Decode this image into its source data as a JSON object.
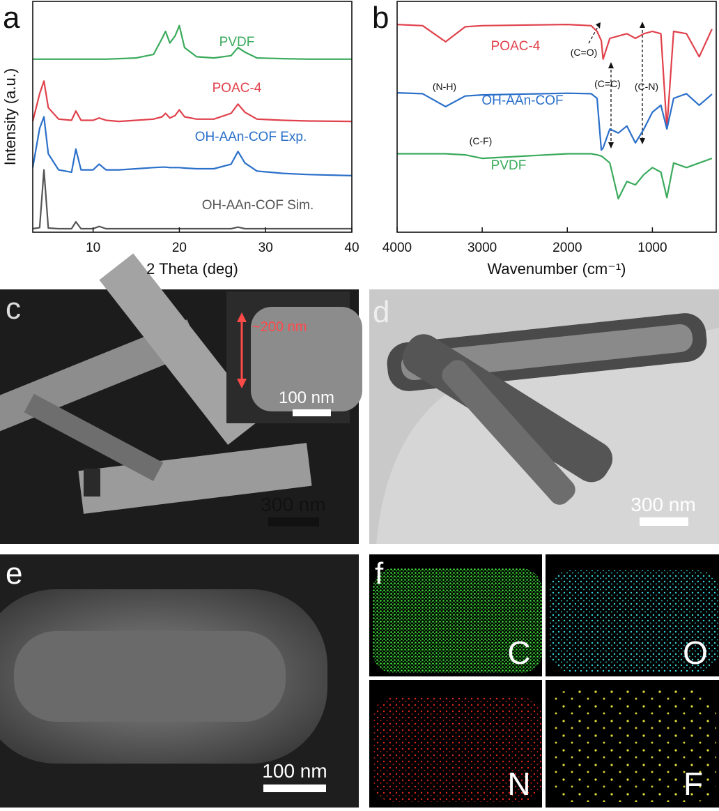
{
  "chart_data": [
    {
      "type": "line",
      "panel_label": "a",
      "x_label": "2 Theta (deg)",
      "y_label": "Intensity (a.u.)",
      "xlim": [
        3,
        40
      ],
      "xticks": [
        10,
        20,
        30,
        40
      ],
      "ylim": [
        0,
        100
      ],
      "x": [
        3,
        3.8,
        4.3,
        4.8,
        6,
        7.5,
        8.0,
        8.6,
        10,
        10.7,
        11.5,
        13,
        15,
        17,
        18.0,
        18.4,
        18.9,
        19.5,
        20.0,
        20.6,
        22,
        24,
        26,
        26.8,
        27.6,
        29,
        32,
        35,
        40
      ],
      "series": [
        {
          "name": "PVDF",
          "color": "#3aaa5c",
          "values": [
            75,
            75,
            75,
            75,
            75,
            75,
            75,
            75,
            75,
            75,
            75,
            75.2,
            75.5,
            77,
            84,
            87,
            82,
            85,
            89.5,
            80,
            76,
            75.5,
            76.5,
            80,
            78,
            75.5,
            75.2,
            75,
            75
          ]
        },
        {
          "name": "POAC-4",
          "color": "#e0414b",
          "values": [
            48,
            60,
            65.5,
            54,
            49,
            48.5,
            52.5,
            48.5,
            48.5,
            49.5,
            48.5,
            48,
            48.5,
            49,
            50,
            51.5,
            49.5,
            50.5,
            53,
            50,
            49,
            49,
            51.5,
            55.5,
            52,
            49,
            48.5,
            48.2,
            48
          ]
        },
        {
          "name": "OH-AAn-COF Exp.",
          "color": "#2a6fc9",
          "values": [
            28,
            45,
            50,
            34,
            27,
            26,
            36,
            27,
            27,
            29.5,
            27,
            27,
            27.5,
            28,
            28.2,
            28.2,
            28,
            28,
            28,
            27.8,
            27.5,
            27.5,
            29.5,
            35,
            30,
            26.5,
            25.5,
            25,
            24.5
          ]
        },
        {
          "name": "OH-AAn-COF Sim.",
          "color": "#555555",
          "values": [
            1.5,
            2,
            27,
            1.8,
            1.5,
            1.5,
            4.5,
            1.5,
            1.5,
            2.5,
            1.5,
            1.5,
            1.5,
            1.5,
            1.5,
            1.5,
            1.5,
            1.5,
            1.5,
            1.5,
            1.5,
            1.5,
            1.5,
            2.2,
            1.5,
            1.5,
            1.5,
            1.5,
            1.5
          ]
        }
      ]
    },
    {
      "type": "line",
      "panel_label": "b",
      "x_label": "Wavenumber (cm⁻¹)",
      "xlim": [
        4000,
        250
      ],
      "xticks": [
        4000,
        3000,
        2000,
        1000
      ],
      "ylim": [
        0,
        100
      ],
      "x": [
        4000,
        3700,
        3430,
        3200,
        3000,
        2000,
        1720,
        1650,
        1600,
        1580,
        1500,
        1400,
        1300,
        1200,
        1100,
        1000,
        900,
        830,
        750,
        600,
        450,
        300
      ],
      "series": [
        {
          "name": "POAC-4",
          "color": "#e0414b",
          "values": [
            90,
            89.5,
            82.5,
            89,
            89.5,
            90,
            89.5,
            87,
            83,
            75,
            84,
            85,
            86,
            84,
            86,
            87,
            86,
            45,
            87,
            86,
            76,
            88
          ]
        },
        {
          "name": "OH-AAn-COF",
          "color": "#2a6fc9",
          "values": [
            60.4,
            60,
            54.4,
            59,
            59.5,
            60.2,
            60,
            58,
            35.6,
            36.5,
            44.7,
            43,
            46,
            38.7,
            44.7,
            52,
            55,
            44.7,
            58,
            60,
            55,
            59.8
          ]
        },
        {
          "name": "PVDF",
          "color": "#3aaa5c",
          "values": [
            34,
            34,
            34,
            33.5,
            32,
            34,
            34,
            33.5,
            33,
            32.5,
            30,
            14.5,
            22,
            20.5,
            25,
            28,
            26,
            15,
            30,
            28,
            30,
            32
          ]
        }
      ],
      "annotations": [
        "(C=O)",
        "(N-H)",
        "(C=C)",
        "(C-N)",
        "(C-F)"
      ]
    }
  ],
  "images": [
    {
      "panel_label": "c",
      "scale_bar": "300 nm",
      "inset_size": "~200 nm",
      "inset_scale_bar": "100 nm"
    },
    {
      "panel_label": "d",
      "scale_bar": "300 nm"
    },
    {
      "panel_label": "e",
      "scale_bar": "100 nm"
    },
    {
      "panel_label": "f",
      "elements": [
        "C",
        "O",
        "N",
        "F"
      ]
    }
  ]
}
